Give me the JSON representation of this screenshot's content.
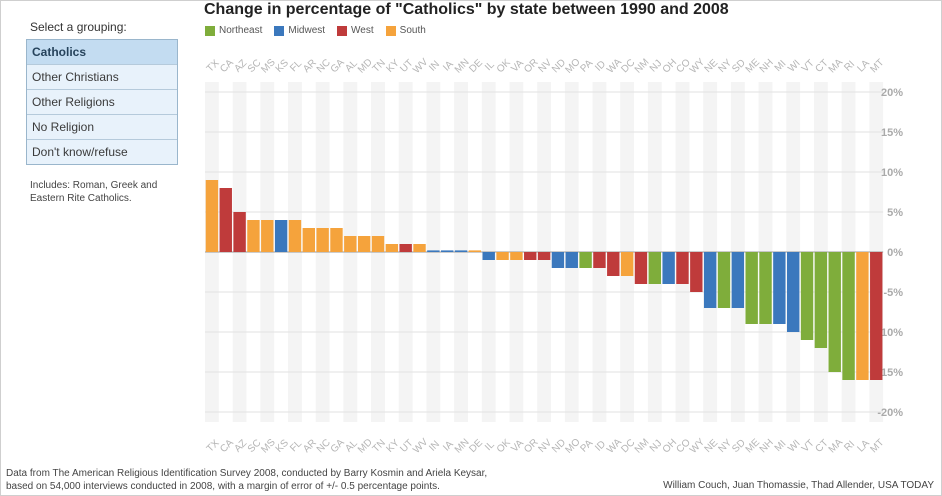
{
  "sidebar": {
    "select_label": "Select a grouping:",
    "groupings": [
      "Catholics",
      "Other Christians",
      "Other Religions",
      "No Religion",
      "Don't know/refuse"
    ],
    "selected_index": 0,
    "note": "Includes: Roman, Greek and Eastern Rite Catholics."
  },
  "footer": {
    "source_line1": "Data from The American Religious Identification Survey 2008, conducted by Barry Kosmin and Ariela Keysar,",
    "source_line2": "based on 54,000 interviews conducted in 2008, with a margin of error of +/- 0.5 percentage points.",
    "credits": "William Couch, Juan Thomassie, Thad Allender, USA TODAY"
  },
  "chart_data": {
    "type": "bar",
    "title": "Change in percentage of \"Catholics\" by state between 1990 and 2008",
    "xlabel": "",
    "ylabel": "",
    "ylim": [
      -20,
      20
    ],
    "yticks": [
      20,
      15,
      10,
      5,
      0,
      -5,
      -10,
      -15,
      -20
    ],
    "ytick_labels": [
      "20%",
      "15%",
      "10%",
      "5%",
      "0%",
      "-5%",
      "-10%",
      "-15%",
      "-20%"
    ],
    "legend": [
      {
        "name": "Northeast",
        "color": "#7fad3b"
      },
      {
        "name": "Midwest",
        "color": "#3b78bd"
      },
      {
        "name": "West",
        "color": "#bf3b3b"
      },
      {
        "name": "South",
        "color": "#f5a33c"
      }
    ],
    "categories": [
      "TX",
      "CA",
      "AZ",
      "SC",
      "MS",
      "KS",
      "FL",
      "AR",
      "NC",
      "GA",
      "AL",
      "MD",
      "TN",
      "KY",
      "UT",
      "WV",
      "IN",
      "IA",
      "MN",
      "DE",
      "IL",
      "OK",
      "VA",
      "OR",
      "NV",
      "ND",
      "MO",
      "PA",
      "ID",
      "WA",
      "DC",
      "NM",
      "NJ",
      "OH",
      "CO",
      "WY",
      "NE",
      "NY",
      "SD",
      "ME",
      "NH",
      "MI",
      "WI",
      "VT",
      "CT",
      "MA",
      "RI",
      "LA",
      "MT"
    ],
    "regions": [
      "South",
      "West",
      "West",
      "South",
      "South",
      "Midwest",
      "South",
      "South",
      "South",
      "South",
      "South",
      "South",
      "South",
      "South",
      "West",
      "South",
      "Midwest",
      "Midwest",
      "Midwest",
      "South",
      "Midwest",
      "South",
      "South",
      "West",
      "West",
      "Midwest",
      "Midwest",
      "Northeast",
      "West",
      "West",
      "South",
      "West",
      "Northeast",
      "Midwest",
      "West",
      "West",
      "Midwest",
      "Northeast",
      "Midwest",
      "Northeast",
      "Northeast",
      "Midwest",
      "Midwest",
      "Northeast",
      "Northeast",
      "Northeast",
      "Northeast",
      "South",
      "West"
    ],
    "values": [
      9,
      8,
      5,
      4,
      4,
      4,
      4,
      3,
      3,
      3,
      2,
      2,
      2,
      1,
      1,
      1,
      0.2,
      0.2,
      0.2,
      0.2,
      -1,
      -1,
      -1,
      -1,
      -1,
      -2,
      -2,
      -2,
      -2,
      -3,
      -3,
      -4,
      -4,
      -4,
      -4,
      -5,
      -7,
      -7,
      -7,
      -9,
      -9,
      -9,
      -10,
      -11,
      -12,
      -15,
      -16,
      -16,
      -16
    ]
  }
}
